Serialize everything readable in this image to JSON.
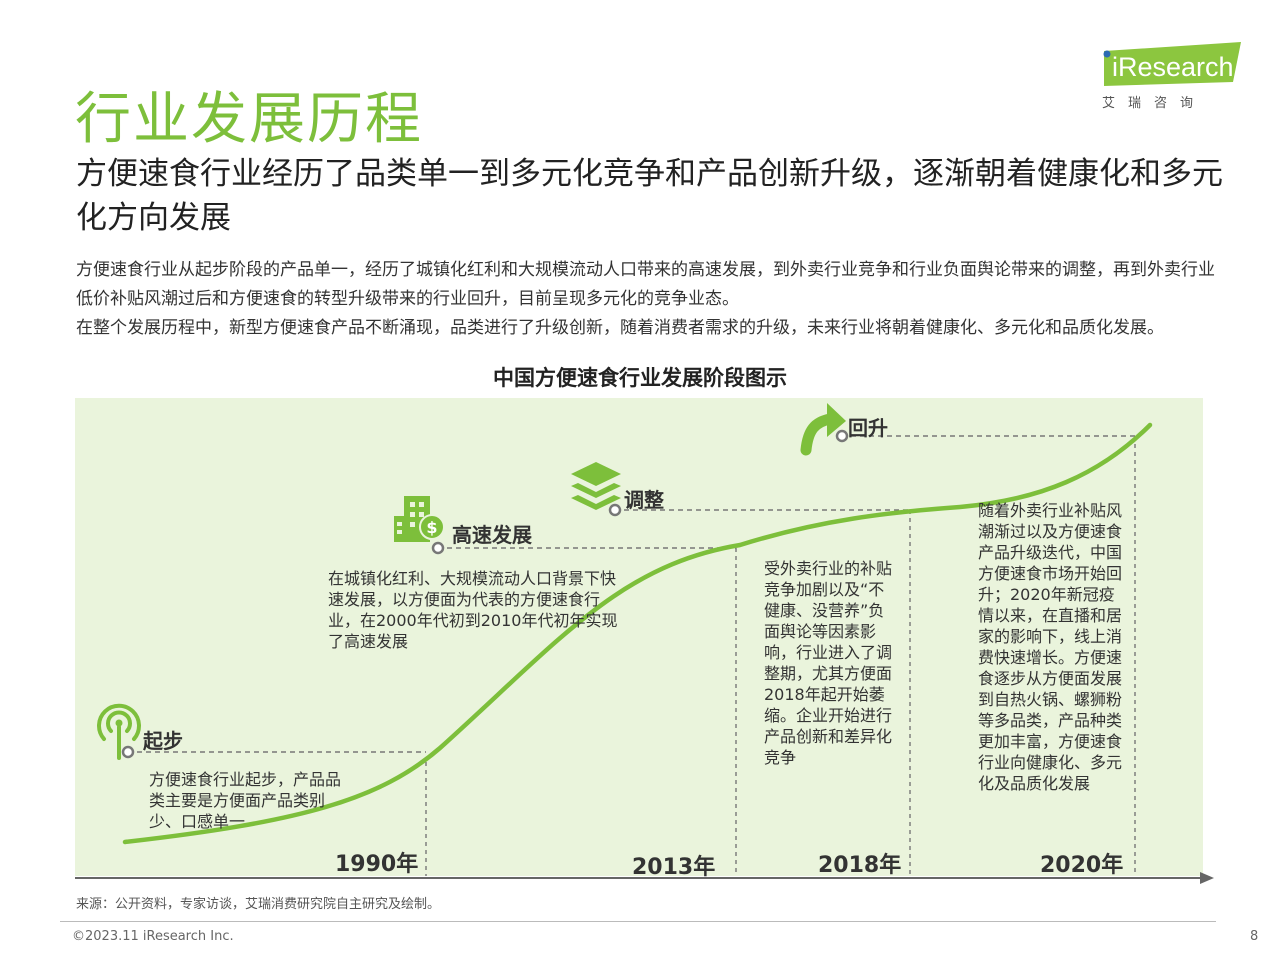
{
  "header": {
    "title": "行业发展历程",
    "subtitle": "方便速食行业经历了品类单一到多元化竞争和产品创新升级，逐渐朝着健康化和多元化方向发展",
    "logo_text": "iResearch",
    "logo_subtext": "艾瑞咨询"
  },
  "intro": {
    "line1": "方便速食行业从起步阶段的产品单一，经历了城镇化红利和大规模流动人口带来的高速发展，到外卖行业竞争和行业负面舆论带来的调整，再到外卖行业低价补贴风潮过后和方便速食的转型升级带来的行业回升，目前呈现多元化的竞争业态。",
    "line2": "在整个发展历程中，新型方便速食产品不断涌现，品类进行了升级创新，随着消费者需求的升级，未来行业将朝着健康化、多元化和品质化发展。"
  },
  "diagram": {
    "title": "中国方便速食行业发展阶段图示",
    "stages": [
      {
        "label": "起步",
        "icon": "signal-tower-icon",
        "year": "1990年",
        "description": "方便速食行业起步，产品品类主要是方便面产品类别少、口感单一"
      },
      {
        "label": "高速发展",
        "icon": "buildings-money-icon",
        "year": "2013年",
        "description": "在城镇化红利、大规模流动人口背景下快速发展，以方便面为代表的方便速食行业，在2000年代初到2010年代初年实现了高速发展"
      },
      {
        "label": "调整",
        "icon": "layers-icon",
        "year": "2018年",
        "description": "受外卖行业的补贴竞争加剧以及“不健康、没营养”负面舆论等因素影响，行业进入了调整期，尤其方便面2018年起开始萎缩。企业开始进行产品创新和差异化竞争"
      },
      {
        "label": "回升",
        "icon": "up-arrow-icon",
        "year": "2020年",
        "description": "随着外卖行业补贴风潮渐过以及方便速食产品升级迭代，中国方便速食市场开始回升；2020年新冠疫情以来，在直播和居家的影响下，线上消费快速增长。方便速食逐步从方便面发展到自热火锅、螺狮粉等多品类，产品种类更加丰富，方便速食行业向健康化、多元化及品质化发展"
      }
    ]
  },
  "footer": {
    "source": "来源：公开资料，专家访谈，艾瑞消费研究院自主研究及绘制。",
    "copyright": "©2023.11 iResearch Inc.",
    "page_number": "8"
  },
  "colors": {
    "accent_green": "#7dbf3b",
    "chart_background": "#eaf4dc",
    "dashed_line": "#777777",
    "text": "#333333"
  }
}
